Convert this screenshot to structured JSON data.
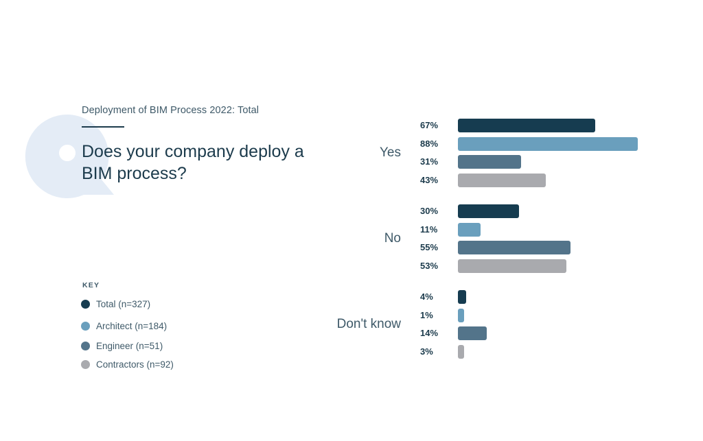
{
  "page": {
    "subtitle": "Deployment of BIM Process 2022: Total",
    "question": "Does your company deploy a BIM process?",
    "key_title": "KEY"
  },
  "colors": {
    "total": "#163c50",
    "architect": "#6a9fbd",
    "engineer": "#53748a",
    "contractors": "#a9aaae",
    "q_mark": "#e4ecf6"
  },
  "chart_data": {
    "type": "bar",
    "orientation": "horizontal",
    "title": "Does your company deploy a BIM process?",
    "subtitle": "Deployment of BIM Process 2022: Total",
    "categories": [
      "Yes",
      "No",
      "Don't know"
    ],
    "series": [
      {
        "name": "Total (n=327)",
        "key": "total",
        "values": [
          67,
          30,
          4
        ],
        "labels": [
          "67%",
          "30%",
          "4%"
        ]
      },
      {
        "name": "Architect (n=184)",
        "key": "architect",
        "values": [
          88,
          11,
          1
        ],
        "labels": [
          "88%",
          "11%",
          "1%"
        ]
      },
      {
        "name": "Engineer (n=51)",
        "key": "engineer",
        "values": [
          31,
          55,
          14
        ],
        "labels": [
          "31%",
          "55%",
          "14%"
        ]
      },
      {
        "name": "Contractors (n=92)",
        "key": "contractors",
        "values": [
          43,
          53,
          3
        ],
        "labels": [
          "43%",
          "53%",
          "3%"
        ]
      }
    ],
    "unit": "%",
    "xlim": [
      0,
      100
    ],
    "grid": false,
    "legend": "bottom-left"
  }
}
